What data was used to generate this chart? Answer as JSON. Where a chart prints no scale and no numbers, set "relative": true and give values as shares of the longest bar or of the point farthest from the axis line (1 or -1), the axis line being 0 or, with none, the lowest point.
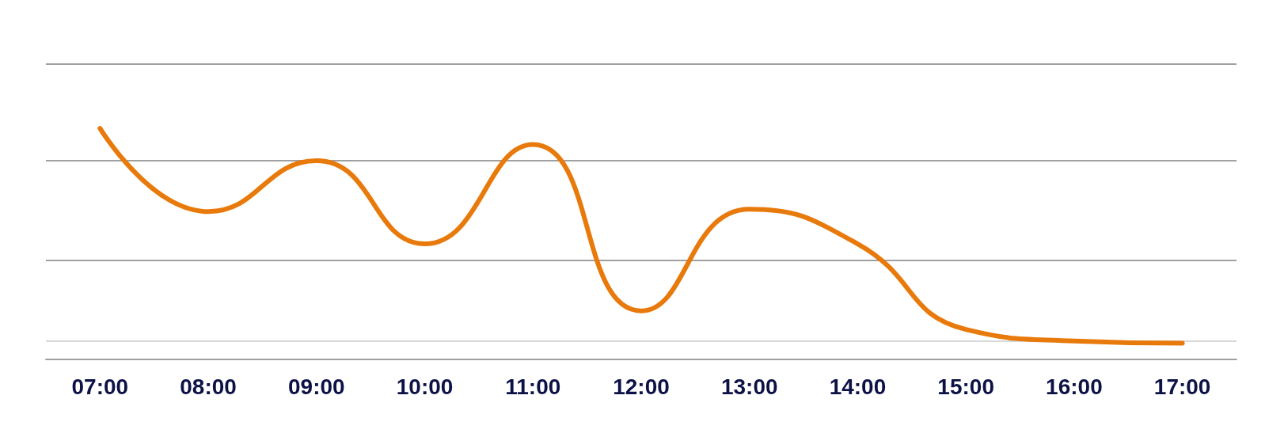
{
  "chart_data": {
    "type": "line",
    "relative": true,
    "categories": [
      "07:00",
      "08:00",
      "09:00",
      "10:00",
      "11:00",
      "12:00",
      "13:00",
      "14:00",
      "15:00",
      "16:00",
      "17:00"
    ],
    "series": [
      {
        "color": "#e87a0c",
        "values": [
          1,
          0.64,
          0.86,
          0.5,
          0.93,
          0.21,
          0.65,
          0.5,
          0.13,
          0.08,
          0.07
        ]
      }
    ],
    "ref_lines": [
      {
        "axis": "y",
        "value": 0.08,
        "color": "#d8d8d8"
      },
      {
        "axis": "y",
        "value": 0.43,
        "color": "#a0a0a0"
      },
      {
        "axis": "y",
        "value": 0.86,
        "color": "#a0a0a0"
      },
      {
        "axis": "y",
        "value": 1.28,
        "color": "#a0a0a0"
      }
    ],
    "marker": "none",
    "line_style": "solid"
  }
}
